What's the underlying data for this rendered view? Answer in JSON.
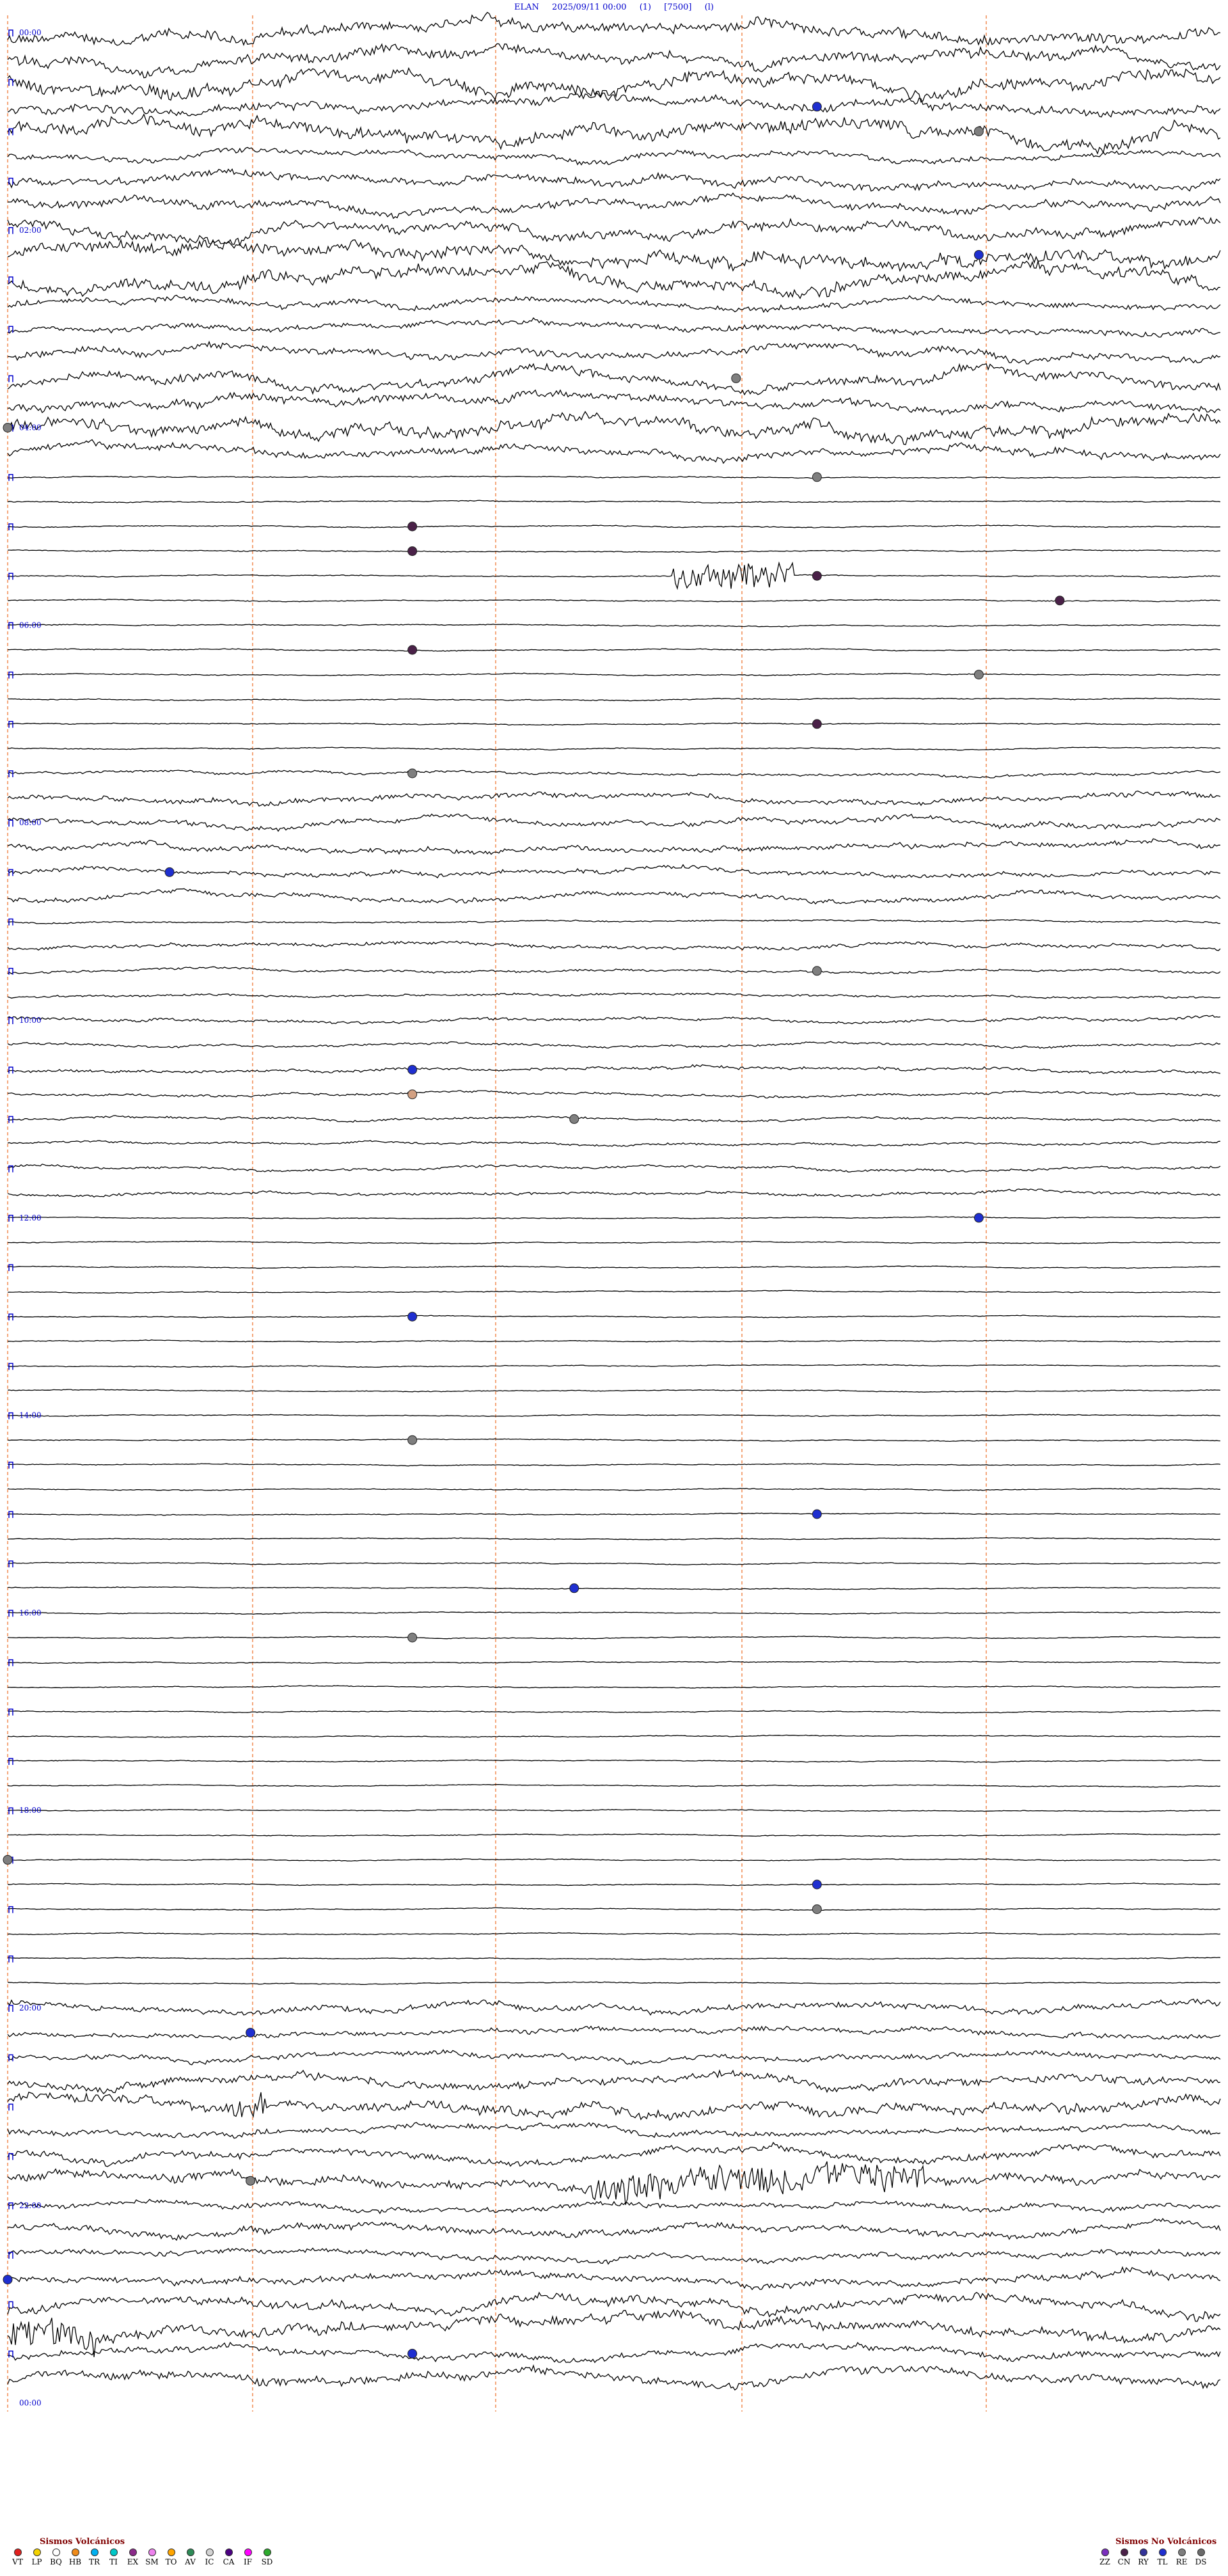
{
  "header": {
    "station": "ELAN",
    "datetime": "2025/09/11 00:00",
    "code1": "(1)",
    "scale": "[7500]",
    "code2": "(l)"
  },
  "chart_data": {
    "type": "helicorder",
    "hours": [
      "00:00",
      "02:00",
      "04:00",
      "06:00",
      "08:00",
      "10:00",
      "12:00",
      "14:00",
      "16:00",
      "18:00",
      "20:00",
      "22:00",
      "00:00"
    ],
    "trace_count": 96,
    "events": [
      {
        "time": "00:55",
        "color": "#1f2fd0"
      },
      {
        "time": "01:12",
        "color": "#7f7f7f"
      },
      {
        "time": "02:27",
        "color": "#1f2fd0"
      },
      {
        "time": "03:39",
        "color": "#7f7f7f"
      },
      {
        "time": "04:00",
        "color": "#7f7f7f"
      },
      {
        "time": "04:40",
        "color": "#7f7f7f"
      },
      {
        "time": "05:05",
        "color": "#4a2148"
      },
      {
        "time": "05:20",
        "color": "#4a2148"
      },
      {
        "time": "05:40",
        "color": "#4a2148"
      },
      {
        "time": "05:58",
        "color": "#4a2148"
      },
      {
        "time": "06:20",
        "color": "#4a2148"
      },
      {
        "time": "06:42",
        "color": "#7f7f7f"
      },
      {
        "time": "07:10",
        "color": "#4a2148"
      },
      {
        "time": "07:35",
        "color": "#7f7f7f"
      },
      {
        "time": "08:32",
        "color": "#1f2fd0"
      },
      {
        "time": "09:40",
        "color": "#7f7f7f"
      },
      {
        "time": "10:35",
        "color": "#1f2fd0"
      },
      {
        "time": "10:50",
        "color": "#d2a082"
      },
      {
        "time": "11:07",
        "color": "#7f7f7f"
      },
      {
        "time": "12:12",
        "color": "#1f2fd0"
      },
      {
        "time": "13:05",
        "color": "#1f2fd0"
      },
      {
        "time": "14:20",
        "color": "#7f7f7f"
      },
      {
        "time": "15:10",
        "color": "#1f2fd0"
      },
      {
        "time": "15:52",
        "color": "#1f2fd0"
      },
      {
        "time": "16:20",
        "color": "#7f7f7f"
      },
      {
        "time": "18:30",
        "color": "#7f7f7f"
      },
      {
        "time": "18:55",
        "color": "#1f2fd0"
      },
      {
        "time": "19:10",
        "color": "#7f7f7f"
      },
      {
        "time": "20:18",
        "color": "#1f2fd0"
      },
      {
        "time": "21:48",
        "color": "#7f7f7f"
      },
      {
        "time": "22:45",
        "color": "#1f2fd0"
      },
      {
        "time": "23:35",
        "color": "#1f2fd0"
      }
    ]
  },
  "legend_volcanic": {
    "title": "Sismos Volcánicos",
    "items": [
      {
        "code": "VT",
        "color": "#e0201e"
      },
      {
        "code": "LP",
        "color": "#f4d300"
      },
      {
        "code": "BQ",
        "color": "#ffffff"
      },
      {
        "code": "HB",
        "color": "#f08c1a"
      },
      {
        "code": "TR",
        "color": "#00b0f0"
      },
      {
        "code": "TI",
        "color": "#00c8c8"
      },
      {
        "code": "EX",
        "color": "#8b2a8a"
      },
      {
        "code": "SM",
        "color": "#ee82ee"
      },
      {
        "code": "TO",
        "color": "#ffa500"
      },
      {
        "code": "AV",
        "color": "#2e8b57"
      },
      {
        "code": "IC",
        "color": "#d3d3d3"
      },
      {
        "code": "CA",
        "color": "#4b0082"
      },
      {
        "code": "IF",
        "color": "#ff00ff"
      },
      {
        "code": "SD",
        "color": "#2eaa2e"
      }
    ]
  },
  "legend_nonvolcanic": {
    "title": "Sismos No Volcánicos",
    "items": [
      {
        "code": "ZZ",
        "color": "#7b2fbe"
      },
      {
        "code": "CN",
        "color": "#4a2148"
      },
      {
        "code": "RY",
        "color": "#333399"
      },
      {
        "code": "TL",
        "color": "#1f2fd0"
      },
      {
        "code": "RE",
        "color": "#7f7f7f"
      },
      {
        "code": "DS",
        "color": "#6b6b6b"
      }
    ]
  }
}
